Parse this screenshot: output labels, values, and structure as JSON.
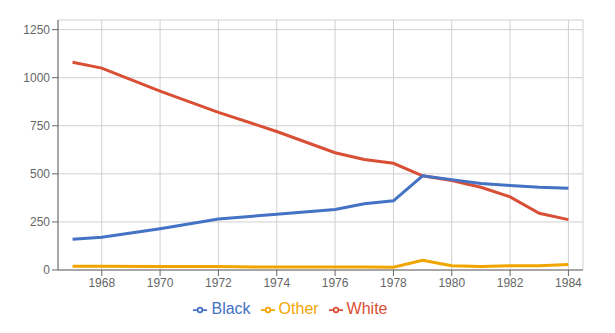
{
  "chart_data": {
    "type": "line",
    "x": [
      1967,
      1968,
      1970,
      1972,
      1974,
      1976,
      1977,
      1978,
      1979,
      1980,
      1981,
      1982,
      1983,
      1984
    ],
    "series": [
      {
        "name": "White",
        "color": "#d94f35",
        "values": [
          1080,
          1050,
          930,
          820,
          720,
          610,
          575,
          555,
          490,
          465,
          430,
          380,
          295,
          262
        ]
      },
      {
        "name": "Black",
        "color": "#4472c4",
        "values": [
          160,
          170,
          215,
          265,
          290,
          315,
          345,
          360,
          490,
          470,
          450,
          440,
          430,
          425
        ]
      },
      {
        "name": "Other",
        "color": "#f0a500",
        "values": [
          20,
          20,
          18,
          18,
          15,
          15,
          15,
          14,
          50,
          22,
          18,
          22,
          22,
          28
        ]
      }
    ],
    "xlim": [
      1966.5,
      1984.5
    ],
    "xticks": [
      1968,
      1970,
      1972,
      1974,
      1976,
      1978,
      1980,
      1982,
      1984
    ],
    "ylim": [
      0,
      1300
    ],
    "yticks": [
      0,
      250,
      500,
      750,
      1000,
      1250
    ],
    "grid": true,
    "legend": "bottom"
  }
}
